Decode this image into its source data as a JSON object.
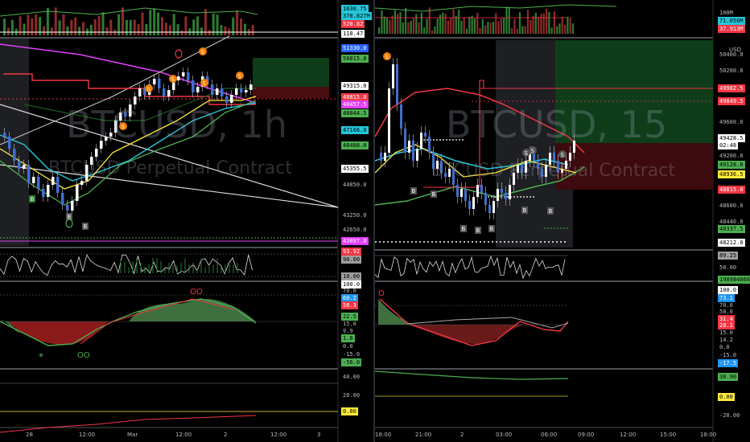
{
  "left_chart": {
    "watermark_symbol": "BTCUSD, 1h",
    "watermark_subtitle": "BTCUSD Perpetual Contract",
    "time_labels": [
      "28",
      "12:00",
      "Mar",
      "12:00",
      "2",
      "12:00",
      "3"
    ],
    "price_tags": [
      {
        "text": "1630.75",
        "bg": "#26c6da"
      },
      {
        "text": "370.827M",
        "bg": "#26c6da"
      },
      {
        "text": "520.82",
        "bg": "#f23645"
      },
      {
        "text": "118.47",
        "bg": "#ffffff"
      },
      {
        "text": "51330.0",
        "bg": "#2962ff"
      },
      {
        "text": "50815.0",
        "bg": "#4caf50"
      },
      {
        "text": "49315.0",
        "bg": "#ffffff"
      },
      {
        "text": "48815.0",
        "bg": "#f23645"
      },
      {
        "text": "48457.5",
        "bg": "#e040fb"
      },
      {
        "text": "48044.5",
        "bg": "#4caf50"
      },
      {
        "text": "47166.0",
        "bg": "#26c6da"
      },
      {
        "text": "46488.0",
        "bg": "#4caf50"
      },
      {
        "text": "45355.5",
        "bg": "#ffffff"
      },
      {
        "text": "44850.0",
        "bg": ""
      },
      {
        "text": "43250.0",
        "bg": ""
      },
      {
        "text": "42650.0",
        "bg": ""
      },
      {
        "text": "43097.0",
        "bg": "#e040fb"
      }
    ],
    "osc1_tags": [
      {
        "text": "93.92",
        "bg": "#f23645"
      },
      {
        "text": "90.00",
        "bg": "#9e9e9e"
      },
      {
        "text": "10.00",
        "bg": "#9e9e9e"
      }
    ],
    "osc2_tags": [
      {
        "text": "100.0",
        "bg": "#ffffff"
      },
      {
        "text": "70.0",
        "bg": ""
      },
      {
        "text": "60.2",
        "bg": "#2196f3"
      },
      {
        "text": "58.3",
        "bg": "#f23645"
      },
      {
        "text": "22.5",
        "bg": "#4caf50"
      },
      {
        "text": "15.0",
        "bg": ""
      },
      {
        "text": "9.9",
        "bg": ""
      },
      {
        "text": "1.8",
        "bg": "#4caf50"
      },
      {
        "text": "0.0",
        "bg": ""
      },
      {
        "text": "-15.0",
        "bg": ""
      },
      {
        "text": "-56.0",
        "bg": "#4caf50"
      }
    ],
    "osc3_tags": [
      {
        "text": "40.00",
        "bg": ""
      },
      {
        "text": "20.00",
        "bg": ""
      },
      {
        "text": "0.00",
        "bg": "#ffeb3b"
      }
    ],
    "signal_labels": [
      "S",
      "S",
      "S",
      "S",
      "S",
      "S",
      "B",
      "B",
      "B"
    ]
  },
  "right_chart": {
    "watermark_symbol": "BTCUSD, 15",
    "watermark_subtitle": "BTCUSD Perpetual Contract",
    "time_labels": [
      "18:00",
      "21:00",
      "2",
      "03:00",
      "06:00",
      "09:00",
      "12:00",
      "15:00",
      "18:00"
    ],
    "currency": "USD",
    "price_tags": [
      {
        "text": "100M",
        "bg": ""
      },
      {
        "text": "71.056M",
        "bg": "#26c6da"
      },
      {
        "text": "37.913M",
        "bg": "#f23645"
      },
      {
        "text": "50400.0",
        "bg": ""
      },
      {
        "text": "50200.0",
        "bg": ""
      },
      {
        "text": "49982.5",
        "bg": "#f23645"
      },
      {
        "text": "49849.5",
        "bg": "#f23645"
      },
      {
        "text": "49600.0",
        "bg": ""
      },
      {
        "text": "49428.5",
        "bg": "#ffffff"
      },
      {
        "text": "02:48",
        "bg": "#ffffff"
      },
      {
        "text": "49200.0",
        "bg": ""
      },
      {
        "text": "49128.0",
        "bg": "#4caf50"
      },
      {
        "text": "48936.5",
        "bg": "#ffeb3b"
      },
      {
        "text": "48815.0",
        "bg": "#f23645"
      },
      {
        "text": "48600.0",
        "bg": ""
      },
      {
        "text": "48440.0",
        "bg": ""
      },
      {
        "text": "48337.5",
        "bg": "#4caf50"
      },
      {
        "text": "48212.0",
        "bg": "#ffffff"
      }
    ],
    "osc1_tags": [
      {
        "text": "89.25",
        "bg": "#9e9e9e"
      },
      {
        "text": "50.00",
        "bg": ""
      },
      {
        "text": "198984866.0",
        "bg": "#4caf50"
      }
    ],
    "osc2_tags": [
      {
        "text": "100.0",
        "bg": "#ffffff"
      },
      {
        "text": "73.1",
        "bg": "#2196f3"
      },
      {
        "text": "70.0",
        "bg": ""
      },
      {
        "text": "50.0",
        "bg": ""
      },
      {
        "text": "31.4",
        "bg": "#f23645"
      },
      {
        "text": "28.1",
        "bg": "#f23645"
      },
      {
        "text": "15.0",
        "bg": ""
      },
      {
        "text": "14.2",
        "bg": ""
      },
      {
        "text": "0.0",
        "bg": ""
      },
      {
        "text": "-15.0",
        "bg": ""
      },
      {
        "text": "-17.5",
        "bg": "#2196f3"
      }
    ],
    "osc3_tags": [
      {
        "text": "30.90",
        "bg": "#4caf50"
      },
      {
        "text": "0.00",
        "bg": "#ffeb3b"
      },
      {
        "text": "-20.00",
        "bg": ""
      }
    ],
    "signal_labels": [
      "S",
      "S",
      "S",
      "S",
      "B",
      "B",
      "B",
      "B",
      "B",
      "B",
      "B"
    ]
  }
}
